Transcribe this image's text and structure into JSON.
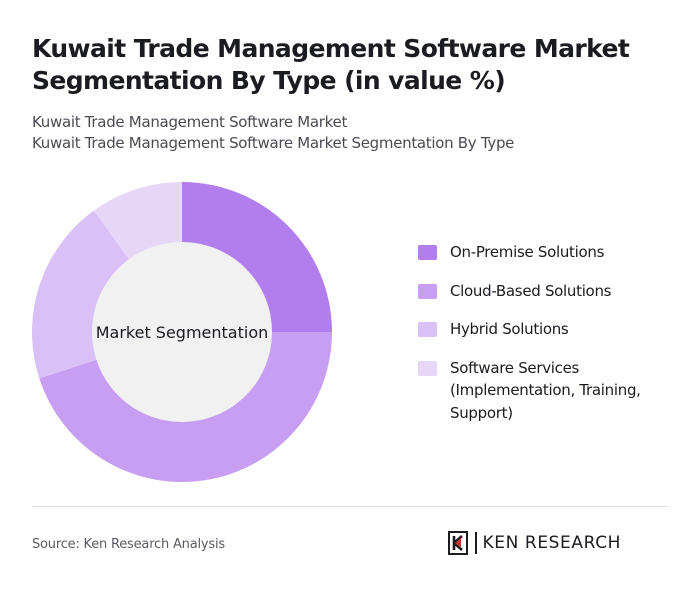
{
  "title": "Kuwait Trade Management Software Market Segmentation By Type (in value %)",
  "subtitle_lines": [
    "Kuwait Trade Management Software Market",
    "Kuwait Trade Management Software Market Segmentation By Type"
  ],
  "chart_data": {
    "type": "pie",
    "variant": "donut",
    "center_label": "Market Segmentation",
    "categories": [
      "On-Premise Solutions",
      "Cloud-Based Solutions",
      "Hybrid Solutions",
      "Software Services (Implementation, Training, Support)"
    ],
    "values": [
      25,
      45,
      20,
      10
    ],
    "unit": "%",
    "colors": [
      "#b27ded",
      "#c79ef2",
      "#d9c0f6",
      "#e6d7f9"
    ],
    "legend_position": "right"
  },
  "footer": {
    "source": "Source: Ken Research Analysis",
    "brand": "KEN RESEARCH"
  }
}
